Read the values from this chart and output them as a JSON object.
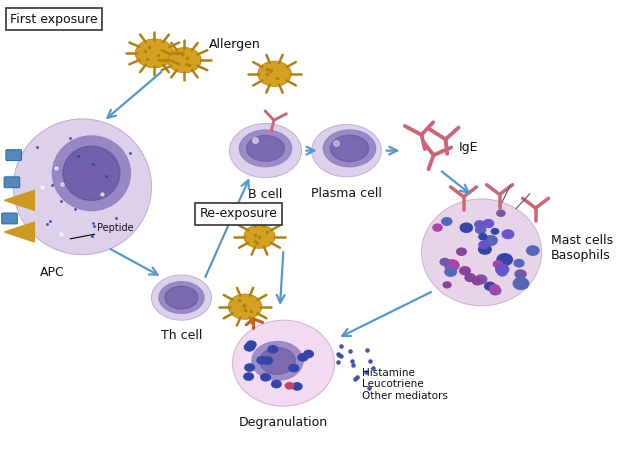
{
  "bg_color": "#ffffff",
  "fig_width": 6.24,
  "fig_height": 4.55,
  "dpi": 100,
  "labels": {
    "first_exposure": "First exposure",
    "allergen": "Allergen",
    "b_cell": "B cell",
    "plasma_cell": "Plasma cell",
    "ige": "IgE",
    "re_exposure": "Re-exposure",
    "apc": "APC",
    "peptide": "Peptide",
    "th_cell": "Th cell",
    "mast_cells": "Mast cells\nBasophils",
    "degranulation": "Degranulation",
    "mediators": "Histamine\nLeucotriene\nOther mediators"
  },
  "colors": {
    "cell_body_light": "#dfd0e8",
    "cell_body_apc": "#d8c8e0",
    "nucleus_mid": "#8878b8",
    "nucleus_dark": "#5c4a90",
    "nucleus_light": "#a090c8",
    "allergen_gold": "#d4a020",
    "allergen_dark": "#b08010",
    "arrow_blue": "#5599cc",
    "ige_pink": "#cc6677",
    "receptor_blue": "#5588bb",
    "apc_triangle": "#cc9922",
    "box_bg": "#ffffff",
    "box_border": "#333333",
    "text_color": "#111111",
    "granule_blue": "#3344aa",
    "granule_purple": "#7755aa",
    "mast_pink": "#e8d0e8",
    "degen_body": "#f0d8f0",
    "receptor_orange": "#cc5522"
  }
}
